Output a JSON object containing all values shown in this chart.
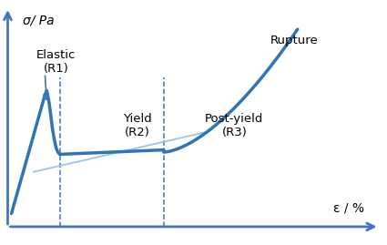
{
  "axis_color": "#4472C4",
  "curve_color": "#2E75B6",
  "tangent_color": "#9DC3E6",
  "dashed_color": "#4472C4",
  "background_color": "#FFFFFF",
  "ylabel": "σ/ Pa",
  "xlabel": "ε / %",
  "label_elastic": "Elastic\n(R1)",
  "label_yield": "Yield\n(R2)",
  "label_postyield": "Post-yield\n(R3)",
  "label_rupture": "Rupture",
  "xlim": [
    0,
    1.0
  ],
  "ylim": [
    -0.05,
    1.0
  ]
}
